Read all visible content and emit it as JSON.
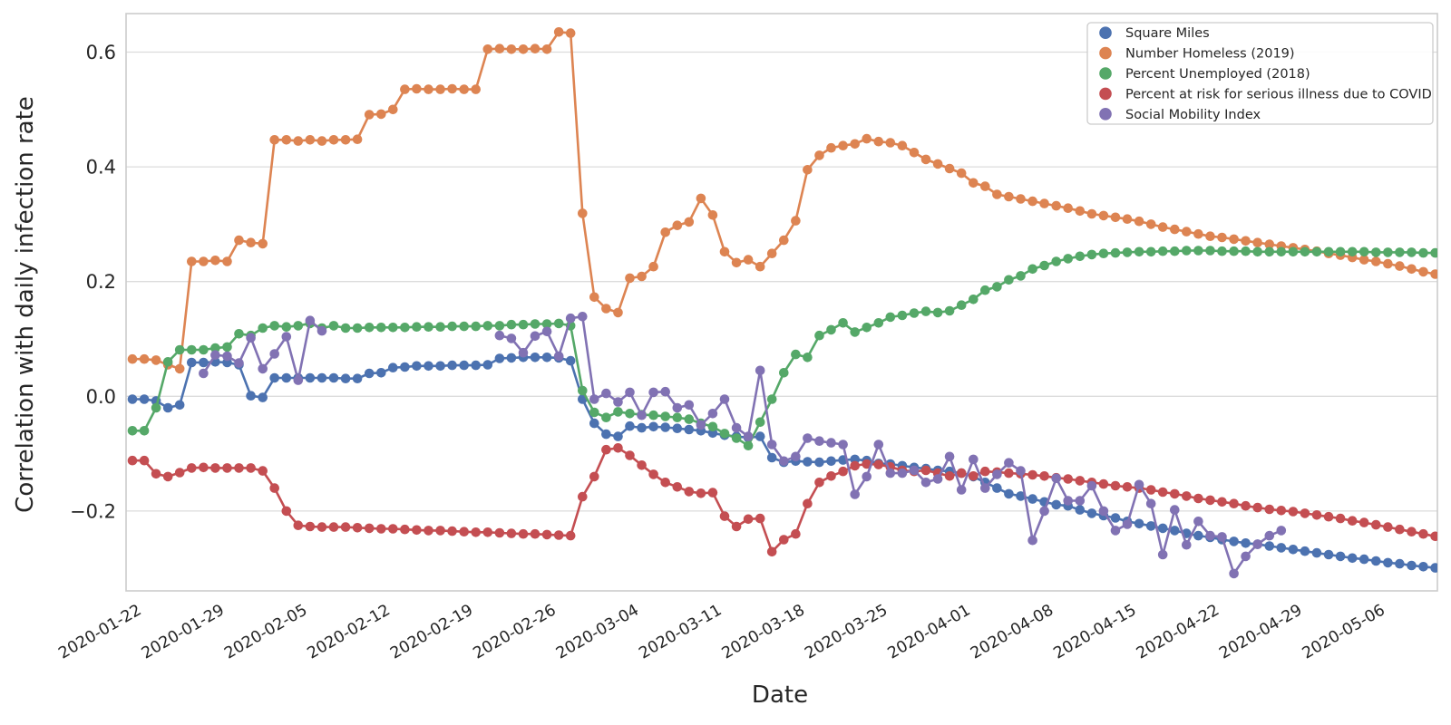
{
  "chart_data": {
    "type": "line",
    "title": "",
    "xlabel": "Date",
    "ylabel": "Correlation with daily infection rate",
    "start_date": "2020-01-22",
    "n_points": 111,
    "x_tick_days": [
      0,
      7,
      14,
      21,
      28,
      35,
      42,
      49,
      56,
      63,
      70,
      77,
      84,
      91,
      98,
      105
    ],
    "x_tick_labels": [
      "2020-01-22",
      "2020-01-29",
      "2020-02-05",
      "2020-02-12",
      "2020-02-19",
      "2020-02-26",
      "2020-03-04",
      "2020-03-11",
      "2020-03-18",
      "2020-03-25",
      "2020-04-01",
      "2020-04-08",
      "2020-04-15",
      "2020-04-22",
      "2020-04-29",
      "2020-05-06"
    ],
    "yticks": [
      0.6,
      0.4,
      0.2,
      0.0,
      -0.2
    ],
    "ytick_labels": [
      "0.6",
      "0.4",
      "0.2",
      "0.0",
      "−0.2"
    ],
    "ylim": [
      -0.34,
      0.667
    ],
    "grid": "horizontal-only",
    "legend_position": "upper-right",
    "series": [
      {
        "name": "Square Miles",
        "color": "#4C72B0",
        "values": [
          -0.005,
          -0.005,
          -0.008,
          -0.02,
          -0.015,
          0.059,
          0.059,
          0.06,
          0.059,
          0.055,
          0.001,
          -0.002,
          0.032,
          0.032,
          0.032,
          0.032,
          0.032,
          0.032,
          0.031,
          0.031,
          0.04,
          0.041,
          0.05,
          0.051,
          0.053,
          0.053,
          0.053,
          0.054,
          0.054,
          0.054,
          0.055,
          0.066,
          0.067,
          0.068,
          0.068,
          0.068,
          0.067,
          0.062,
          -0.005,
          -0.047,
          -0.066,
          -0.07,
          -0.052,
          -0.055,
          -0.053,
          -0.054,
          -0.056,
          -0.058,
          -0.06,
          -0.064,
          -0.068,
          -0.07,
          -0.072,
          -0.07,
          -0.107,
          -0.115,
          -0.113,
          -0.114,
          -0.115,
          -0.113,
          -0.111,
          -0.11,
          -0.112,
          -0.117,
          -0.118,
          -0.121,
          -0.124,
          -0.126,
          -0.129,
          -0.131,
          -0.134,
          -0.14,
          -0.15,
          -0.16,
          -0.17,
          -0.174,
          -0.179,
          -0.184,
          -0.189,
          -0.191,
          -0.198,
          -0.204,
          -0.208,
          -0.212,
          -0.218,
          -0.222,
          -0.226,
          -0.23,
          -0.234,
          -0.239,
          -0.243,
          -0.246,
          -0.25,
          -0.253,
          -0.256,
          -0.258,
          -0.261,
          -0.264,
          -0.267,
          -0.27,
          -0.273,
          -0.276,
          -0.279,
          -0.282,
          -0.284,
          -0.287,
          -0.29,
          -0.292,
          -0.295,
          -0.297,
          -0.299
        ]
      },
      {
        "name": "Number Homeless (2019)",
        "color": "#DD8452",
        "values": [
          0.065,
          0.065,
          0.063,
          0.055,
          0.048,
          0.235,
          0.235,
          0.237,
          0.235,
          0.272,
          0.268,
          0.266,
          0.447,
          0.447,
          0.445,
          0.447,
          0.445,
          0.447,
          0.447,
          0.448,
          0.491,
          0.492,
          0.5,
          0.535,
          0.536,
          0.535,
          0.535,
          0.536,
          0.535,
          0.535,
          0.605,
          0.606,
          0.605,
          0.605,
          0.606,
          0.605,
          0.635,
          0.633,
          0.319,
          0.173,
          0.153,
          0.146,
          0.206,
          0.209,
          0.226,
          0.286,
          0.298,
          0.304,
          0.345,
          0.316,
          0.252,
          0.233,
          0.238,
          0.226,
          0.249,
          0.272,
          0.306,
          0.395,
          0.42,
          0.433,
          0.437,
          0.44,
          0.449,
          0.444,
          0.442,
          0.437,
          0.425,
          0.413,
          0.405,
          0.397,
          0.389,
          0.372,
          0.366,
          0.352,
          0.348,
          0.344,
          0.34,
          0.336,
          0.332,
          0.328,
          0.323,
          0.318,
          0.315,
          0.312,
          0.309,
          0.305,
          0.3,
          0.295,
          0.291,
          0.287,
          0.283,
          0.279,
          0.277,
          0.274,
          0.271,
          0.268,
          0.265,
          0.262,
          0.259,
          0.256,
          0.253,
          0.249,
          0.246,
          0.242,
          0.238,
          0.235,
          0.231,
          0.227,
          0.222,
          0.217,
          0.213
        ]
      },
      {
        "name": "Percent Unemployed (2018)",
        "color": "#55A868",
        "values": [
          -0.06,
          -0.06,
          -0.02,
          0.06,
          0.081,
          0.081,
          0.081,
          0.084,
          0.086,
          0.109,
          0.106,
          0.119,
          0.123,
          0.121,
          0.123,
          0.127,
          0.119,
          0.123,
          0.119,
          0.119,
          0.12,
          0.12,
          0.12,
          0.12,
          0.121,
          0.121,
          0.121,
          0.122,
          0.122,
          0.122,
          0.123,
          0.123,
          0.125,
          0.125,
          0.126,
          0.126,
          0.127,
          0.123,
          0.01,
          -0.028,
          -0.037,
          -0.027,
          -0.03,
          -0.032,
          -0.033,
          -0.035,
          -0.037,
          -0.04,
          -0.047,
          -0.053,
          -0.065,
          -0.073,
          -0.086,
          -0.045,
          -0.005,
          0.041,
          0.073,
          0.068,
          0.106,
          0.116,
          0.128,
          0.112,
          0.12,
          0.128,
          0.138,
          0.141,
          0.145,
          0.148,
          0.146,
          0.149,
          0.159,
          0.169,
          0.185,
          0.191,
          0.203,
          0.21,
          0.222,
          0.228,
          0.235,
          0.24,
          0.244,
          0.247,
          0.249,
          0.25,
          0.251,
          0.252,
          0.252,
          0.253,
          0.253,
          0.254,
          0.254,
          0.254,
          0.253,
          0.253,
          0.253,
          0.252,
          0.252,
          0.252,
          0.252,
          0.252,
          0.252,
          0.252,
          0.252,
          0.252,
          0.252,
          0.251,
          0.251,
          0.251,
          0.251,
          0.25,
          0.25
        ]
      },
      {
        "name": "Percent at risk for serious illness due to COVID",
        "color": "#C44E52",
        "values": [
          -0.112,
          -0.112,
          -0.135,
          -0.14,
          -0.133,
          -0.125,
          -0.124,
          -0.125,
          -0.125,
          -0.125,
          -0.125,
          -0.13,
          -0.16,
          -0.2,
          -0.225,
          -0.227,
          -0.228,
          -0.228,
          -0.228,
          -0.229,
          -0.23,
          -0.231,
          -0.231,
          -0.232,
          -0.233,
          -0.234,
          -0.234,
          -0.235,
          -0.236,
          -0.237,
          -0.237,
          -0.238,
          -0.239,
          -0.24,
          -0.24,
          -0.241,
          -0.242,
          -0.243,
          -0.175,
          -0.14,
          -0.093,
          -0.09,
          -0.103,
          -0.12,
          -0.136,
          -0.15,
          -0.158,
          -0.166,
          -0.169,
          -0.168,
          -0.209,
          -0.227,
          -0.214,
          -0.213,
          -0.271,
          -0.25,
          -0.24,
          -0.187,
          -0.15,
          -0.139,
          -0.131,
          -0.121,
          -0.118,
          -0.119,
          -0.123,
          -0.129,
          -0.131,
          -0.129,
          -0.134,
          -0.139,
          -0.134,
          -0.139,
          -0.131,
          -0.132,
          -0.134,
          -0.135,
          -0.137,
          -0.139,
          -0.142,
          -0.144,
          -0.147,
          -0.15,
          -0.153,
          -0.156,
          -0.158,
          -0.16,
          -0.163,
          -0.167,
          -0.17,
          -0.174,
          -0.178,
          -0.181,
          -0.184,
          -0.187,
          -0.191,
          -0.194,
          -0.197,
          -0.199,
          -0.201,
          -0.204,
          -0.207,
          -0.21,
          -0.213,
          -0.217,
          -0.22,
          -0.224,
          -0.228,
          -0.232,
          -0.236,
          -0.24,
          -0.244
        ]
      },
      {
        "name": "Social Mobility Index",
        "color": "#8172B3",
        "values": [
          null,
          null,
          null,
          null,
          null,
          null,
          0.04,
          0.072,
          0.07,
          0.058,
          0.102,
          0.048,
          0.074,
          0.104,
          0.028,
          0.132,
          0.114,
          null,
          null,
          null,
          null,
          null,
          null,
          null,
          null,
          null,
          null,
          null,
          null,
          null,
          null,
          0.106,
          0.101,
          0.076,
          0.105,
          0.113,
          0.07,
          0.136,
          0.139,
          -0.005,
          0.005,
          -0.01,
          0.007,
          -0.033,
          0.007,
          0.008,
          -0.02,
          -0.015,
          -0.05,
          -0.03,
          -0.005,
          -0.055,
          -0.07,
          0.045,
          -0.084,
          -0.113,
          -0.105,
          -0.073,
          -0.078,
          -0.081,
          -0.084,
          -0.171,
          -0.14,
          -0.084,
          -0.134,
          -0.134,
          -0.129,
          -0.15,
          -0.144,
          -0.105,
          -0.163,
          -0.11,
          -0.16,
          -0.136,
          -0.116,
          -0.13,
          -0.251,
          -0.2,
          -0.143,
          -0.182,
          -0.182,
          -0.156,
          -0.2,
          -0.234,
          -0.223,
          -0.154,
          -0.187,
          -0.276,
          -0.198,
          -0.259,
          -0.218,
          -0.243,
          -0.245,
          -0.309,
          -0.279,
          -0.258,
          -0.243,
          -0.234,
          null,
          null,
          null,
          null,
          null,
          null,
          null,
          null,
          null,
          null,
          null,
          null,
          null
        ]
      }
    ],
    "style": {
      "background": "#ffffff",
      "grid_color": "#dcdcdc",
      "spine_color": "#cccccc",
      "text_color": "#262626",
      "line_width": 2.6,
      "marker_radius": 5.3
    }
  }
}
